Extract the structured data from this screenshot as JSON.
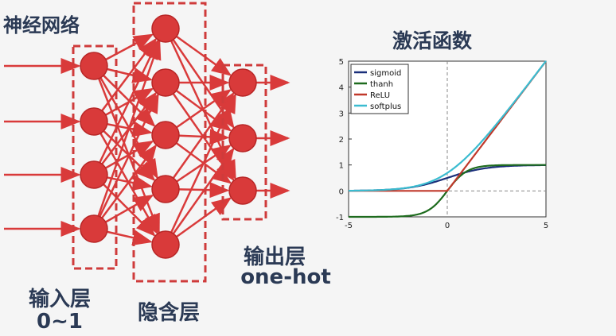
{
  "network": {
    "title": "神经网络",
    "input_layer": {
      "label": "输入层",
      "sublabel": "0~1",
      "nodes": 4
    },
    "hidden_layer": {
      "label": "隐含层",
      "nodes": 5
    },
    "output_layer": {
      "label": "输出层",
      "sublabel": "one-hot",
      "nodes": 3
    },
    "colors": {
      "node": "#d93a3a",
      "node_stroke": "#b82626",
      "edge": "#d93a3a",
      "box": "#cf3b3b"
    }
  },
  "chart_data": {
    "type": "line",
    "title": "激活函数",
    "xlim": [
      -5,
      5
    ],
    "ylim": [
      -1,
      5
    ],
    "xticks": [
      "-5",
      "0",
      "5"
    ],
    "yticks": [
      "-1",
      "0",
      "1",
      "2",
      "3",
      "4",
      "5"
    ],
    "grid": true,
    "legend_placement": "top-left",
    "series": [
      {
        "name": "sigmoid",
        "color": "#1a2f7a",
        "x": [
          -5,
          -4,
          -3,
          -2,
          -1,
          0,
          1,
          2,
          3,
          4,
          5
        ],
        "y": [
          0.007,
          0.018,
          0.047,
          0.119,
          0.269,
          0.5,
          0.731,
          0.881,
          0.953,
          0.982,
          0.993
        ]
      },
      {
        "name": "thanh",
        "color": "#1e6b1e",
        "x": [
          -5,
          -4,
          -3,
          -2,
          -1,
          0,
          1,
          2,
          3,
          4,
          5
        ],
        "y": [
          -1,
          -0.999,
          -0.995,
          -0.964,
          -0.762,
          0,
          0.762,
          0.964,
          0.995,
          0.999,
          1
        ]
      },
      {
        "name": "ReLU",
        "color": "#c0392b",
        "x": [
          -5,
          0,
          5
        ],
        "y": [
          0,
          0,
          5
        ]
      },
      {
        "name": "softplus",
        "color": "#3bbcd0",
        "x": [
          -5,
          -4,
          -3,
          -2,
          -1,
          0,
          1,
          2,
          3,
          4,
          5
        ],
        "y": [
          0.007,
          0.018,
          0.049,
          0.127,
          0.313,
          0.693,
          1.313,
          2.127,
          3.049,
          4.018,
          5.007
        ]
      }
    ]
  }
}
